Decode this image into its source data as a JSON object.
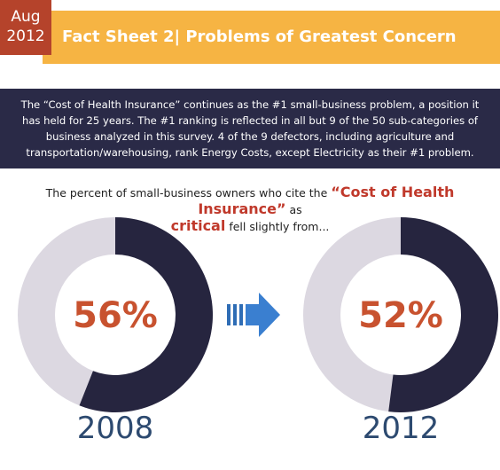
{
  "badge": {
    "month": "Aug",
    "year": "2012"
  },
  "header": {
    "title": "Fact Sheet 2| Problems of Greatest Concern"
  },
  "intro": "The “Cost of Health Insurance” continues as the #1 small-business problem, a position it has held for 25 years. The #1 ranking is reflected in all but 9 of the 50 sub-categories of business analyzed in this survey. 4 of the 9 defectors, including agriculture and transportation/warehousing, rank Energy Costs, except Electricity as their #1 problem.",
  "lead": {
    "before": "The percent of small-business owners who cite the",
    "highlight": "“Cost of Health Insurance”",
    "middle": "as",
    "critical": "critical",
    "after": "fell slightly from..."
  },
  "chart_data": [
    {
      "type": "donut",
      "title": "2008",
      "values": [
        56
      ],
      "value_labels": [
        "56%"
      ],
      "color": "#26253f",
      "track_color": "#dcd8e1"
    },
    {
      "type": "donut",
      "title": "2012",
      "values": [
        52
      ],
      "value_labels": [
        "52%"
      ],
      "color": "#26253f",
      "track_color": "#dcd8e1"
    }
  ]
}
